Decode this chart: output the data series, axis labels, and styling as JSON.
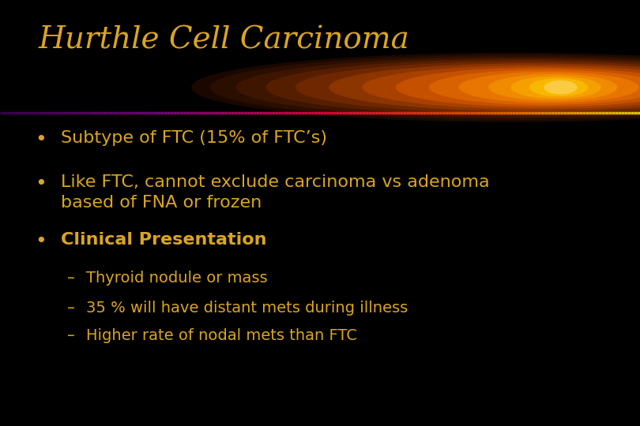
{
  "background_color": "#000000",
  "title": "Hurthle Cell Carcinoma",
  "title_color": "#DAA520",
  "title_fontsize": 28,
  "title_style": "italic",
  "title_font": "serif",
  "bullet_color": "#DAA520",
  "bullet_fontsize": 16,
  "sub_bullet_fontsize": 14,
  "bullets": [
    {
      "text": "Subtype of FTC (15% of FTC’s)",
      "indent": 0,
      "bold": false
    },
    {
      "text": "Like FTC, cannot exclude carcinoma vs adenoma\nbased of FNA or frozen",
      "indent": 0,
      "bold": false
    },
    {
      "text": "Clinical Presentation",
      "indent": 0,
      "bold": true
    },
    {
      "text": "Thyroid nodule or mass",
      "indent": 1,
      "bold": false
    },
    {
      "text": "35 % will have distant mets during illness",
      "indent": 1,
      "bold": false
    },
    {
      "text": "Higher rate of nodal mets than FTC",
      "indent": 1,
      "bold": false
    }
  ]
}
